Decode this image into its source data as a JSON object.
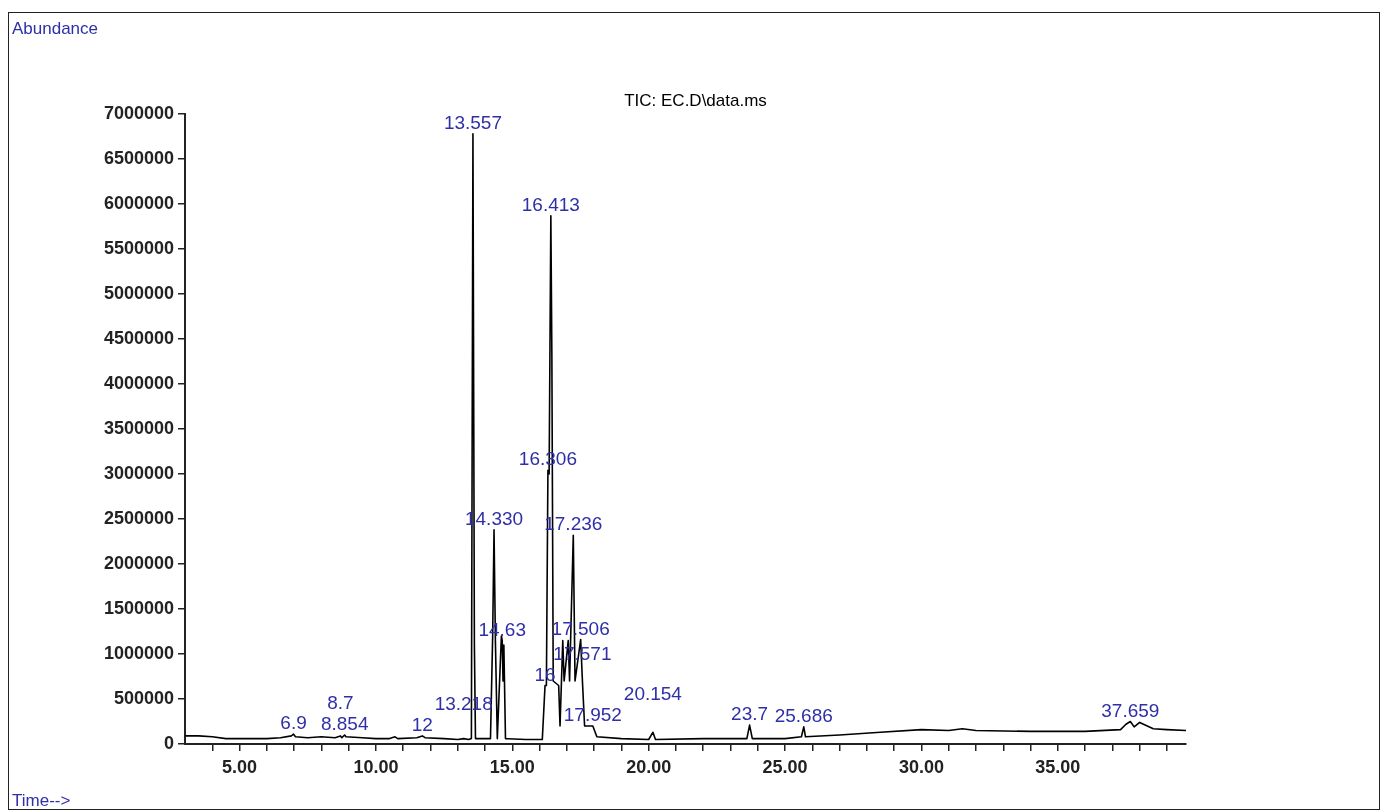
{
  "chart_data": {
    "type": "line",
    "title": "TIC: EC.D\\data.ms",
    "xlabel": "Time-->",
    "ylabel": "Abundance",
    "x": [
      3.0,
      3.5,
      4.0,
      4.5,
      5.0,
      5.5,
      6.0,
      6.5,
      6.9,
      6.98,
      7.05,
      7.5,
      8.0,
      8.5,
      8.7,
      8.75,
      8.854,
      8.9,
      9.5,
      10.0,
      10.5,
      10.7,
      10.8,
      11.5,
      11.7,
      11.8,
      12.5,
      13.0,
      13.218,
      13.4,
      13.5,
      13.557,
      13.61,
      13.65,
      14.2,
      14.28,
      14.33,
      14.38,
      14.45,
      14.6,
      14.63,
      14.66,
      14.69,
      14.75,
      15.5,
      16.1,
      16.2,
      16.25,
      16.306,
      16.35,
      16.413,
      16.45,
      16.5,
      16.7,
      16.75,
      16.85,
      16.9,
      17.05,
      17.1,
      17.236,
      17.3,
      17.506,
      17.571,
      17.65,
      17.952,
      18.1,
      19.0,
      20.0,
      20.154,
      20.25,
      22.0,
      23.6,
      23.7,
      23.8,
      25.0,
      25.6,
      25.686,
      25.75,
      27.0,
      28.5,
      30.0,
      31.0,
      31.5,
      32.0,
      34.0,
      36.0,
      37.3,
      37.5,
      37.659,
      37.8,
      38.0,
      38.5,
      39.0,
      39.7
    ],
    "series": [
      {
        "color": "#000000",
        "values": [
          90000,
          90000,
          80000,
          60000,
          60000,
          60000,
          60000,
          70000,
          90000,
          110000,
          80000,
          70000,
          80000,
          70000,
          90000,
          70000,
          100000,
          80000,
          70000,
          60000,
          60000,
          80000,
          60000,
          70000,
          90000,
          70000,
          60000,
          50000,
          60000,
          50000,
          60000,
          6780000,
          1100000,
          60000,
          60000,
          1200000,
          2380000,
          1150000,
          60000,
          1200000,
          1150000,
          700000,
          1100000,
          60000,
          50000,
          50000,
          650000,
          650000,
          3040000,
          3000000,
          5870000,
          4350000,
          700000,
          650000,
          200000,
          1150000,
          700000,
          1150000,
          700000,
          2320000,
          700000,
          1160000,
          700000,
          200000,
          200000,
          80000,
          60000,
          50000,
          130000,
          50000,
          60000,
          60000,
          210000,
          60000,
          60000,
          80000,
          190000,
          80000,
          100000,
          130000,
          160000,
          150000,
          170000,
          150000,
          140000,
          140000,
          160000,
          220000,
          250000,
          190000,
          240000,
          170000,
          160000,
          150000
        ]
      }
    ],
    "xlim": [
      3.0,
      39.7
    ],
    "xticks": [
      {
        "value": 4,
        "label": null
      },
      {
        "value": 5,
        "label": "5.00"
      },
      {
        "value": 6,
        "label": null
      },
      {
        "value": 7,
        "label": null
      },
      {
        "value": 8,
        "label": null
      },
      {
        "value": 9,
        "label": null
      },
      {
        "value": 10,
        "label": "10.00"
      },
      {
        "value": 11,
        "label": null
      },
      {
        "value": 12,
        "label": null
      },
      {
        "value": 13,
        "label": null
      },
      {
        "value": 14,
        "label": null
      },
      {
        "value": 15,
        "label": "15.00"
      },
      {
        "value": 16,
        "label": null
      },
      {
        "value": 17,
        "label": null
      },
      {
        "value": 18,
        "label": null
      },
      {
        "value": 19,
        "label": null
      },
      {
        "value": 20,
        "label": "20.00"
      },
      {
        "value": 21,
        "label": null
      },
      {
        "value": 22,
        "label": null
      },
      {
        "value": 23,
        "label": null
      },
      {
        "value": 24,
        "label": null
      },
      {
        "value": 25,
        "label": "25.00"
      },
      {
        "value": 26,
        "label": null
      },
      {
        "value": 27,
        "label": null
      },
      {
        "value": 28,
        "label": null
      },
      {
        "value": 29,
        "label": null
      },
      {
        "value": 30,
        "label": "30.00"
      },
      {
        "value": 31,
        "label": null
      },
      {
        "value": 32,
        "label": null
      },
      {
        "value": 33,
        "label": null
      },
      {
        "value": 34,
        "label": null
      },
      {
        "value": 35,
        "label": "35.00"
      },
      {
        "value": 36,
        "label": null
      },
      {
        "value": 37,
        "label": null
      },
      {
        "value": 38,
        "label": null
      },
      {
        "value": 39,
        "label": null
      }
    ],
    "ylim": [
      0,
      7000000
    ],
    "yticks": [
      0,
      500000,
      1000000,
      1500000,
      2000000,
      2500000,
      3000000,
      3500000,
      4000000,
      4500000,
      5000000,
      5500000,
      6000000,
      6500000,
      7000000
    ],
    "grid": false,
    "legend": false,
    "marker": "none",
    "line_style": "solid",
    "annotations": [
      {
        "text": "13.557",
        "x": 13.557,
        "y": 6780000
      },
      {
        "text": "16.413",
        "x": 16.413,
        "y": 5870000
      },
      {
        "text": "16.306",
        "x": 16.306,
        "y": 3040000
      },
      {
        "text": "14.330",
        "x": 14.33,
        "y": 2380000
      },
      {
        "text": "17.236",
        "x": 17.236,
        "y": 2320000
      },
      {
        "text": "14.63",
        "x": 14.63,
        "y": 1150000
      },
      {
        "text": "17.506",
        "x": 17.506,
        "y": 1160000
      },
      {
        "text": "16",
        "x": 16.2,
        "y": 650000
      },
      {
        "text": "17.571",
        "x": 17.571,
        "y": 700000
      },
      {
        "text": "17.952",
        "x": 17.952,
        "y": 200000
      },
      {
        "text": "20.154",
        "x": 20.154,
        "y": 130000
      },
      {
        "text": "23.7",
        "x": 23.7,
        "y": 210000
      },
      {
        "text": "25.686",
        "x": 25.686,
        "y": 190000
      },
      {
        "text": "37.659",
        "x": 37.659,
        "y": 250000
      },
      {
        "text": "6.9",
        "x": 6.98,
        "y": 110000
      },
      {
        "text": "8.854",
        "x": 8.854,
        "y": 100000
      },
      {
        "text": "8.7",
        "x": 8.7,
        "y": 90000
      },
      {
        "text": "12",
        "x": 11.7,
        "y": 90000
      },
      {
        "text": "13.218",
        "x": 13.218,
        "y": 60000
      }
    ]
  }
}
